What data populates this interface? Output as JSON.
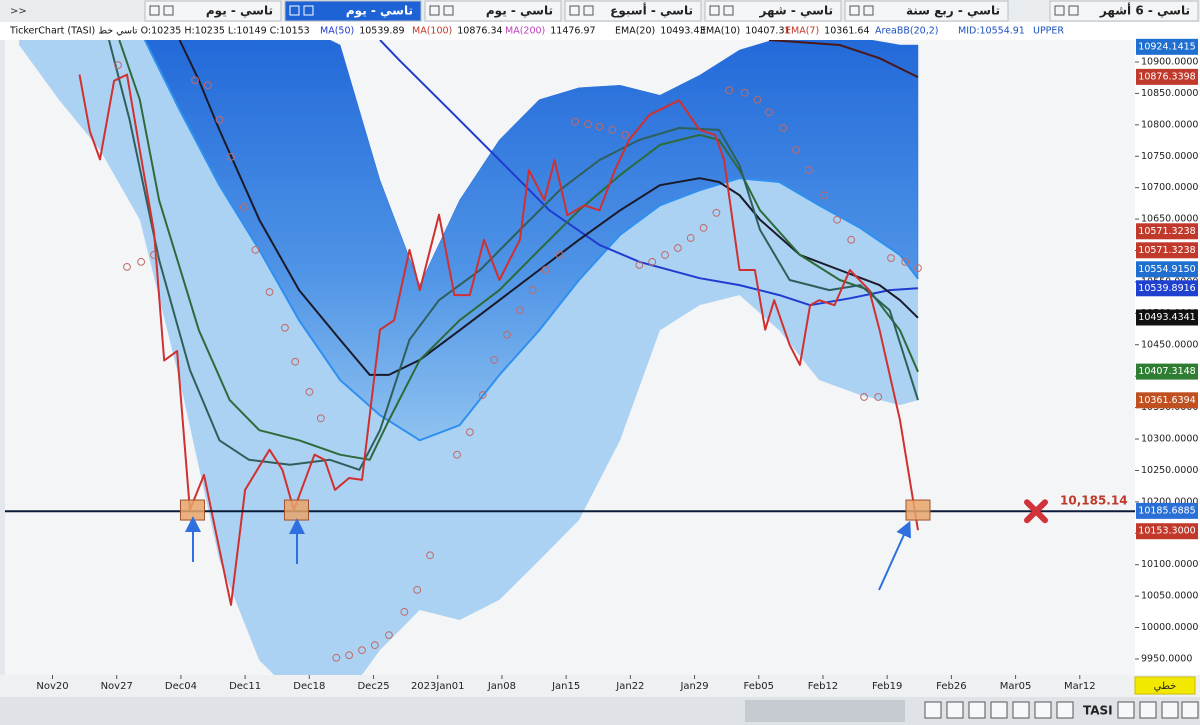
{
  "tabs": {
    "nav": ">>",
    "items": [
      "تاسي - يوم",
      "تاسي - يوم",
      "تاسي - يوم",
      "تاسي - أسبوع",
      "تاسي - شهر",
      "تاسي - ربع سنة",
      "تاسي - 6 أشهر"
    ],
    "active": 1
  },
  "info_bar": {
    "ohlc": "TickerChart (TASI) تاسي خط O:10235 H:10235 L:10149 C:10153",
    "indicators": [
      {
        "name": "MA(50)",
        "value": 10539.89,
        "color": "#1f3bd1"
      },
      {
        "name": "MA(100)",
        "value": 10876.34,
        "color": "#c0392b"
      },
      {
        "name": "MA(200)",
        "value": 11476.97,
        "color": "#c040c0"
      },
      {
        "name": "EMA(20)",
        "value": 10493.43,
        "color": "#111111"
      },
      {
        "name": "EMA(10)",
        "value": 10407.31,
        "color": "#111111"
      },
      {
        "name": "EMA(7)",
        "value": 10361.64,
        "color": "#c0392b"
      }
    ],
    "area": "AreaBB(20,2)",
    "mid": "MID:10554.91",
    "upper": "UPPER"
  },
  "chart_data": {
    "type": "line",
    "xlim": [
      -3.7,
      84.3
    ],
    "ylim": [
      9924.5,
      10935
    ],
    "xticks": [
      {
        "value": 0,
        "label": "Nov20"
      },
      {
        "value": 5,
        "label": "Nov27"
      },
      {
        "value": 10,
        "label": "Dec04"
      },
      {
        "value": 15,
        "label": "Dec11"
      },
      {
        "value": 20,
        "label": "Dec18"
      },
      {
        "value": 25,
        "label": "Dec25"
      },
      {
        "value": 30,
        "label": "2023Jan01"
      },
      {
        "value": 35,
        "label": "Jan08"
      },
      {
        "value": 40,
        "label": "Jan15"
      },
      {
        "value": 45,
        "label": "Jan22"
      },
      {
        "value": 50,
        "label": "Jan29"
      },
      {
        "value": 55,
        "label": "Feb05"
      },
      {
        "value": 60,
        "label": "Feb12"
      },
      {
        "value": 65,
        "label": "Feb19"
      },
      {
        "value": 70,
        "label": "Feb26"
      },
      {
        "value": 75,
        "label": "Mar05"
      },
      {
        "value": 80,
        "label": "Mar12"
      }
    ],
    "yticks": [
      {
        "value": 9950,
        "label": "9950.0000"
      },
      {
        "value": 10000,
        "label": "10000.0000"
      },
      {
        "value": 10050,
        "label": "10050.0000"
      },
      {
        "value": 10100,
        "label": "10100.0000"
      },
      {
        "value": 10150,
        "label": "10150.0000"
      },
      {
        "value": 10200,
        "label": "10200.0000"
      },
      {
        "value": 10250,
        "label": "10250.0000"
      },
      {
        "value": 10300,
        "label": "10300.0000"
      },
      {
        "value": 10350,
        "label": "10350.0000"
      },
      {
        "value": 10400,
        "label": "10400.0000"
      },
      {
        "value": 10450,
        "label": "10450.0000"
      },
      {
        "value": 10500,
        "label": "10500.0000"
      },
      {
        "value": 10550,
        "label": "10550.0000"
      },
      {
        "value": 10600,
        "label": "10600.0000"
      },
      {
        "value": 10650,
        "label": "10650.0000"
      },
      {
        "value": 10700,
        "label": "10700.0000"
      },
      {
        "value": 10750,
        "label": "10750.0000"
      },
      {
        "value": 10800,
        "label": "10800.0000"
      },
      {
        "value": 10850,
        "label": "10850.0000"
      },
      {
        "value": 10900,
        "label": "10900.0000"
      }
    ],
    "bands": {
      "upper_color": "#2a6fd8",
      "lower_color": "#a8d0f2",
      "middle_color": "#2f8ff0",
      "x": [
        -2.6,
        0.5,
        3.7,
        6.8,
        9.9,
        13,
        16.1,
        19.2,
        22.4,
        25.5,
        28.6,
        31.7,
        34.8,
        37.9,
        41,
        44.2,
        47.3,
        50.4,
        53.5,
        56.6,
        59.7,
        62.9,
        66,
        67.4
      ],
      "upper": [
        10967,
        10967,
        10967,
        10967,
        10967,
        10967,
        10967,
        10959,
        10927,
        10712,
        10545,
        10680,
        10776,
        10840,
        10859,
        10863,
        10847,
        10879,
        10919,
        10938,
        10943,
        10938,
        10927,
        10927
      ],
      "middle": [
        10967,
        10967,
        10967,
        10951,
        10824,
        10704,
        10601,
        10489,
        10394,
        10338,
        10298,
        10322,
        10402,
        10473,
        10553,
        10625,
        10672,
        10696,
        10715,
        10709,
        10672,
        10636,
        10593,
        10555
      ],
      "lower": [
        10927,
        10840,
        10760,
        10649,
        10394,
        10107,
        9948,
        9885,
        9877,
        9964,
        10028,
        10012,
        10044,
        10107,
        10171,
        10298,
        10473,
        10513,
        10529,
        10473,
        10394,
        10370,
        10354,
        10362
      ]
    },
    "series": [
      {
        "color": "#1f3bd1",
        "width": 2,
        "x": [
          25.5,
          27,
          30.9,
          34.8,
          38.7,
          42.6,
          45.7,
          50.4,
          53.5,
          56.6,
          59,
          62.1,
          65.2,
          67.4
        ],
        "values": [
          10935,
          10903,
          10824,
          10744,
          10664,
          10609,
          10582,
          10556,
          10545,
          10529,
          10513,
          10524,
          10537,
          10540
        ]
      },
      {
        "color": "#4a1818",
        "width": 2,
        "x": [
          55.8,
          61.3,
          64.4,
          67.4
        ],
        "values": [
          10935,
          10927,
          10906,
          10876
        ]
      },
      {
        "color": "#1a1a2a",
        "width": 2,
        "x": [
          9.9,
          11.4,
          13,
          16.1,
          19.2,
          22.4,
          24.7,
          26.2,
          28.6,
          31.7,
          34.8,
          37.9,
          41,
          44.2,
          47.3,
          50.4,
          51.9,
          53.5,
          55.1,
          58.2,
          61.3,
          64.4,
          66,
          67.4
        ],
        "values": [
          10935,
          10871,
          10792,
          10649,
          10537,
          10458,
          10402,
          10402,
          10426,
          10473,
          10521,
          10569,
          10617,
          10664,
          10704,
          10715,
          10709,
          10688,
          10649,
          10593,
          10569,
          10545,
          10521,
          10493
        ]
      },
      {
        "color": "#2e6b3a",
        "width": 2,
        "x": [
          5.2,
          6.8,
          8.3,
          11.4,
          13.8,
          16.1,
          19.2,
          22.4,
          24.7,
          26.2,
          28.6,
          31.7,
          34.8,
          37.9,
          41,
          44.2,
          47.3,
          50.4,
          51.9,
          53.5,
          55.1,
          58.2,
          61.3,
          63.6,
          66,
          67.4
        ],
        "values": [
          10935,
          10840,
          10680,
          10473,
          10362,
          10314,
          10298,
          10275,
          10267,
          10330,
          10426,
          10489,
          10537,
          10601,
          10664,
          10720,
          10768,
          10784,
          10776,
          10728,
          10664,
          10593,
          10553,
          10537,
          10473,
          10407
        ]
      },
      {
        "color": "#2f5f5a",
        "width": 2,
        "x": [
          4.4,
          6,
          8.3,
          10.7,
          13,
          15.3,
          18.5,
          21.6,
          23.9,
          25.5,
          27.8,
          30.1,
          33.3,
          36.4,
          39.5,
          42.6,
          45.7,
          48.8,
          51.9,
          53.5,
          55.1,
          57.4,
          60.5,
          62.9,
          65.2,
          67.4
        ],
        "values": [
          10935,
          10808,
          10585,
          10410,
          10298,
          10267,
          10259,
          10267,
          10251,
          10314,
          10458,
          10521,
          10569,
          10633,
          10696,
          10744,
          10776,
          10795,
          10792,
          10736,
          10633,
          10553,
          10537,
          10545,
          10505,
          10362
        ]
      },
      {
        "color": "#d03030",
        "width": 2,
        "x": [
          2.1,
          2.9,
          3.7,
          4.8,
          5.8,
          6.8,
          7.9,
          8.7,
          9.7,
          10.7,
          11.8,
          13.9,
          15,
          16.9,
          17.9,
          18.8,
          20.4,
          21.2,
          22,
          23.1,
          24.1,
          25.5,
          26.6,
          27.8,
          28.6,
          30.1,
          31.3,
          32.5,
          33.6,
          34.8,
          36.4,
          37.1,
          38.3,
          39.1,
          40.1,
          41.4,
          42.6,
          43.8,
          44.9,
          46.5,
          48.8,
          50.4,
          51.6,
          52.3,
          53.5,
          54.7,
          55.5,
          56.2,
          57.4,
          58.2,
          59,
          59.7,
          60.9,
          62.1,
          63.6,
          64.4,
          66,
          67.4
        ],
        "values": [
          10880,
          10790,
          10745,
          10870,
          10880,
          10760,
          10630,
          10425,
          10440,
          10187,
          10243,
          10036,
          10219,
          10283,
          10251,
          10187,
          10275,
          10267,
          10219,
          10238,
          10235,
          10474,
          10489,
          10601,
          10537,
          10657,
          10529,
          10529,
          10617,
          10553,
          10617,
          10728,
          10680,
          10744,
          10656,
          10672,
          10664,
          10728,
          10776,
          10816,
          10839,
          10792,
          10784,
          10744,
          10569,
          10569,
          10474,
          10521,
          10450,
          10418,
          10513,
          10521,
          10513,
          10569,
          10537,
          10474,
          10330,
          10155
        ]
      }
    ],
    "dots": {
      "color": "#c06a6a",
      "x": [
        5.1,
        5.8,
        6.9,
        7.9,
        11.1,
        12.1,
        13,
        13.9,
        14.9,
        15.8,
        16.9,
        18.1,
        18.9,
        20,
        20.9,
        22.1,
        23.1,
        24.1,
        25.1,
        26.2,
        27.4,
        28.4,
        29.4,
        31.5,
        32.5,
        33.5,
        34.4,
        35.4,
        36.4,
        37.4,
        38.4,
        39.5,
        40.7,
        41.7,
        42.6,
        43.6,
        44.6,
        45.7,
        46.7,
        47.7,
        48.7,
        49.7,
        50.7,
        51.7,
        52.7,
        53.9,
        54.9,
        55.8,
        56.9,
        57.9,
        58.9,
        60.1,
        61.1,
        62.2,
        63.2,
        64.3,
        65.3,
        66.4,
        67.4
      ],
      "values": [
        10895,
        10574,
        10582,
        10593,
        10871,
        10863,
        10808,
        10749,
        10669,
        10601,
        10534,
        10477,
        10423,
        10375,
        10333,
        9952,
        9956,
        9964,
        9972,
        9988,
        10025,
        10060,
        10115,
        10275,
        10311,
        10370,
        10426,
        10466,
        10505,
        10537,
        10569,
        10593,
        10805,
        10801,
        10797,
        10792,
        10784,
        10577,
        10582,
        10593,
        10604,
        10620,
        10636,
        10660,
        10855,
        10851,
        10840,
        10820,
        10795,
        10760,
        10728,
        10688,
        10649,
        10617,
        10367,
        10367,
        10588,
        10582,
        10572
      ]
    },
    "hline": {
      "value": 10185.14,
      "label": "10,185.14",
      "color": "#0d1b3a",
      "label_color": "#c0392b"
    },
    "highlights": [
      {
        "x": 10.9,
        "value": 10187
      },
      {
        "x": 19,
        "value": 10187
      },
      {
        "x": 67.4,
        "value": 10187
      }
    ],
    "price_tags": [
      {
        "value": 10924.1415,
        "label": "10924.1415",
        "color": "#1e6fd0"
      },
      {
        "value": 10876.3398,
        "label": "10876.3398",
        "color": "#c0392b"
      },
      {
        "value": 10571.3238,
        "label": "10571.3238",
        "color": "#c0392b"
      },
      {
        "value": 10571.3238,
        "label": "10571.3238",
        "color": "#c0392b"
      },
      {
        "value": 10554.915,
        "label": "10554.9150",
        "color": "#1e6fd0"
      },
      {
        "value": 10539.8916,
        "label": "10539.8916",
        "color": "#2040d0"
      },
      {
        "value": 10493.4341,
        "label": "10493.4341",
        "color": "#111111"
      },
      {
        "value": 10407.3148,
        "label": "10407.3148",
        "color": "#2e7d32"
      },
      {
        "value": 10361.6394,
        "label": "10361.6394",
        "color": "#c0501f"
      },
      {
        "value": 10185.6885,
        "label": "10185.6885",
        "color": "#2a6fd6"
      },
      {
        "value": 10153.3,
        "label": "10153.3000",
        "color": "#c0392b"
      }
    ]
  },
  "footer": {
    "style_button": "خطي",
    "symbol": "TASI"
  }
}
